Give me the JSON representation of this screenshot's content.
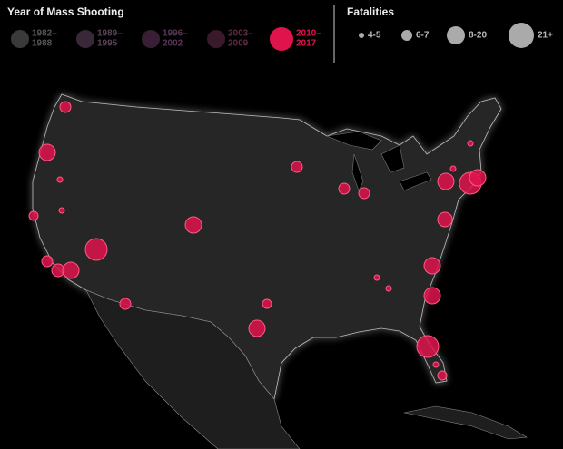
{
  "legend": {
    "title": "Year of Mass Shooting",
    "periods": [
      {
        "lines": [
          "1982–",
          "1988"
        ]
      },
      {
        "lines": [
          "1989–",
          "1995"
        ]
      },
      {
        "lines": [
          "1996–",
          "2002"
        ]
      },
      {
        "lines": [
          "2003–",
          "2009"
        ]
      },
      {
        "lines": [
          "2010–",
          "2017"
        ]
      }
    ]
  },
  "fatalities": {
    "title": "Fatalities",
    "sizes": [
      "4-5",
      "6-7",
      "8-20",
      "21+"
    ]
  }
}
